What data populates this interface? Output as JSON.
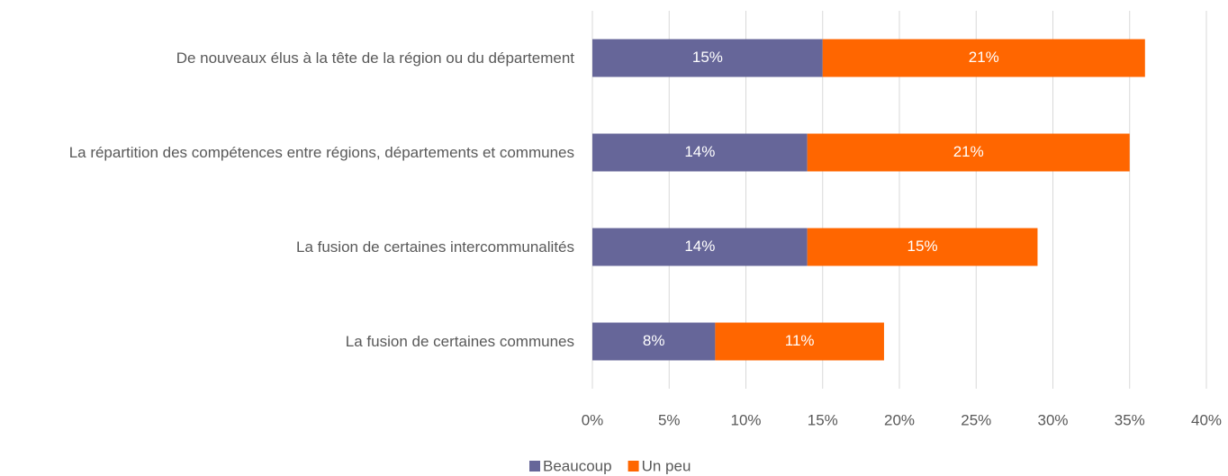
{
  "chart_data": {
    "type": "stacked_barh",
    "categories": [
      "De nouveaux élus à la tête de la région ou du département",
      "La répartition des compétences entre régions, départements et communes",
      "La fusion de certaines intercommunalités",
      "La fusion de certaines communes"
    ],
    "series": [
      {
        "name": "Beaucoup",
        "color": "#666699",
        "values": [
          15,
          14,
          14,
          8
        ],
        "value_labels": [
          "15%",
          "14%",
          "14%",
          "8%"
        ]
      },
      {
        "name": "Un peu",
        "color": "#ff6600",
        "values": [
          21,
          21,
          15,
          11
        ],
        "value_labels": [
          "21%",
          "21%",
          "15%",
          "11%"
        ]
      }
    ],
    "xlim": [
      0,
      40
    ],
    "xticks": [
      {
        "value": 0,
        "label": "0%"
      },
      {
        "value": 5,
        "label": "5%"
      },
      {
        "value": 10,
        "label": "10%"
      },
      {
        "value": 15,
        "label": "15%"
      },
      {
        "value": 20,
        "label": "20%"
      },
      {
        "value": 25,
        "label": "25%"
      },
      {
        "value": 30,
        "label": "30%"
      },
      {
        "value": 35,
        "label": "35%"
      },
      {
        "value": 40,
        "label": "40%"
      }
    ],
    "grid": true,
    "legend": "bottom"
  }
}
